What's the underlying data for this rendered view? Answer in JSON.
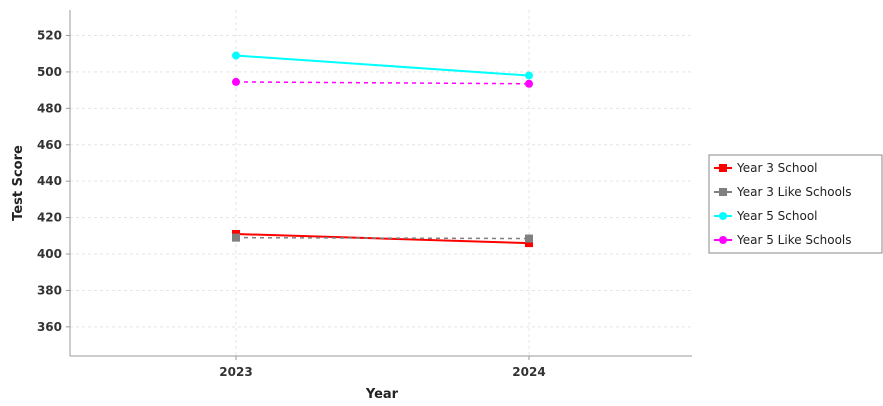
{
  "chart_data": {
    "type": "line",
    "title": "",
    "xlabel": "Year",
    "ylabel": "Test Score",
    "categories": [
      "2023",
      "2024"
    ],
    "ylim": [
      344,
      534
    ],
    "yticks": [
      360,
      380,
      400,
      420,
      440,
      460,
      480,
      500,
      520
    ],
    "grid": true,
    "legend_position": "right",
    "series": [
      {
        "name": "Year 3 School",
        "values": [
          411,
          406
        ],
        "color": "#ff0000",
        "marker": "square",
        "dashed": false
      },
      {
        "name": "Year 3 Like Schools",
        "values": [
          409,
          408.5
        ],
        "color": "#808080",
        "marker": "square",
        "dashed": true
      },
      {
        "name": "Year 5 School",
        "values": [
          509,
          498
        ],
        "color": "#00ffff",
        "marker": "circle",
        "dashed": false
      },
      {
        "name": "Year 5 Like Schools",
        "values": [
          494.5,
          493.5
        ],
        "color": "#ff00ff",
        "marker": "circle",
        "dashed": true
      }
    ]
  }
}
